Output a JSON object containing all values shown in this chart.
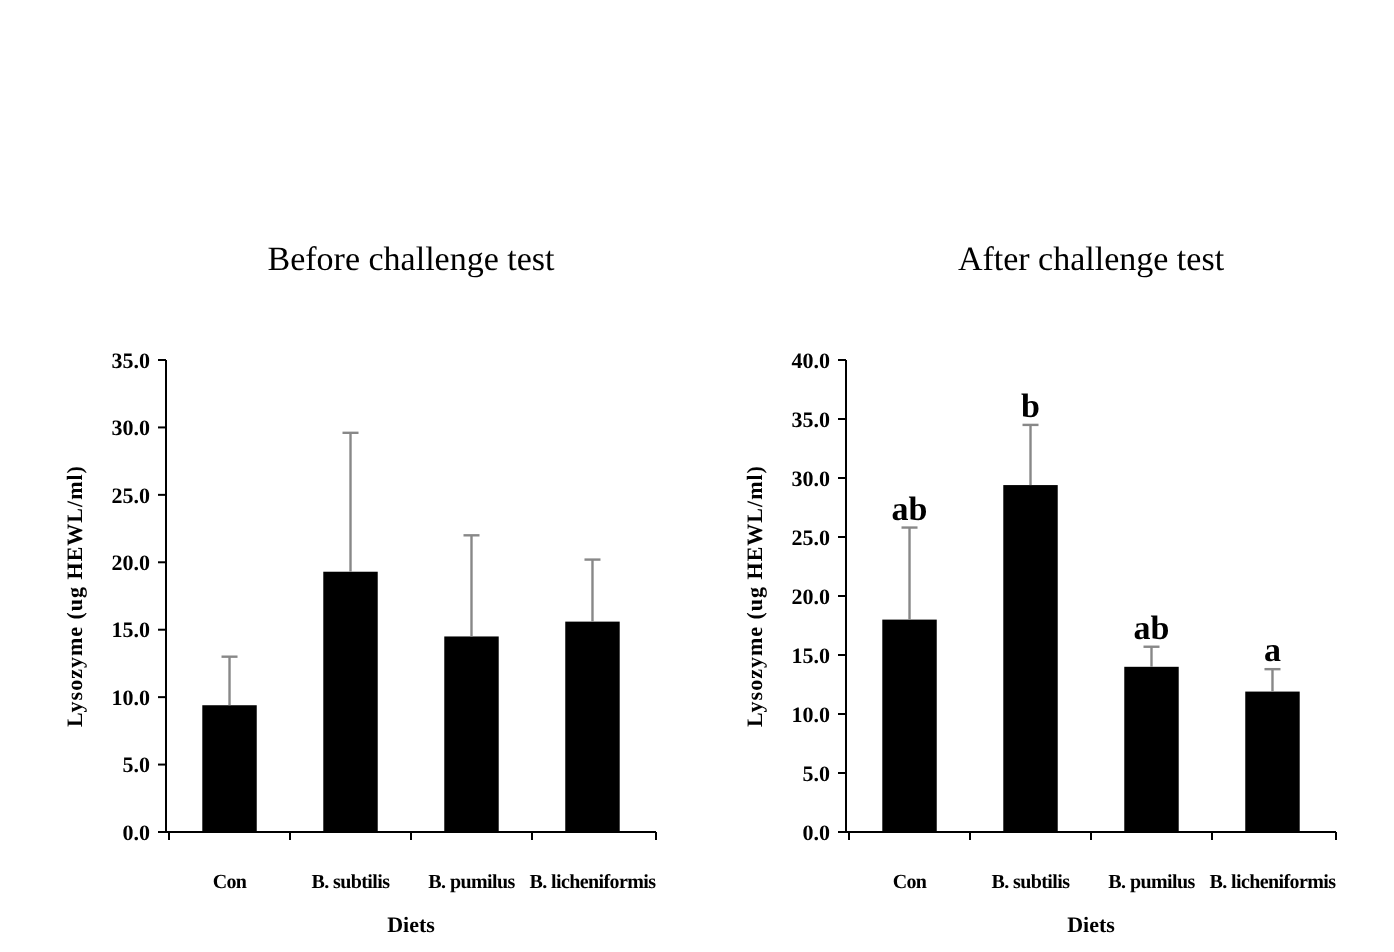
{
  "chart_data": [
    {
      "type": "bar",
      "title": "Before challenge test",
      "xlabel": "Diets",
      "ylabel": "Lysozyme (ug HEWL/ml)",
      "categories": [
        "Con",
        "B. subtilis",
        "B. pumilus",
        "B. licheniformis"
      ],
      "values": [
        9.4,
        19.3,
        14.5,
        15.6
      ],
      "color": "#000000",
      "errors": [
        [
          9.4,
          13.0
        ],
        [
          19.3,
          29.6
        ],
        [
          14.5,
          22.0
        ],
        [
          15.6,
          20.2
        ]
      ],
      "ylim": [
        0,
        35
      ],
      "yticks": [
        {
          "value": 0,
          "label": "0.0"
        },
        {
          "value": 5,
          "label": "5.0"
        },
        {
          "value": 10,
          "label": "10.0"
        },
        {
          "value": 15,
          "label": "15.0"
        },
        {
          "value": 20,
          "label": "20.0"
        },
        {
          "value": 25,
          "label": "25.0"
        },
        {
          "value": 30,
          "label": "30.0"
        },
        {
          "value": 35,
          "label": "35.0"
        }
      ],
      "grid": false
    },
    {
      "type": "bar",
      "title": "After challenge test",
      "xlabel": "Diets",
      "ylabel": "Lysozyme (ug HEWL/ml)",
      "categories": [
        "Con",
        "B. subtilis",
        "B. pumilus",
        "B. licheniformis"
      ],
      "values": [
        18.0,
        29.4,
        14.0,
        11.9
      ],
      "color": "#000000",
      "errors": [
        [
          18.0,
          25.8
        ],
        [
          29.4,
          34.5
        ],
        [
          14.0,
          15.7
        ],
        [
          11.9,
          13.8
        ]
      ],
      "ylim": [
        0,
        40
      ],
      "yticks": [
        {
          "value": 0,
          "label": "0.0"
        },
        {
          "value": 5,
          "label": "5.0"
        },
        {
          "value": 10,
          "label": "10.0"
        },
        {
          "value": 15,
          "label": "15.0"
        },
        {
          "value": 20,
          "label": "20.0"
        },
        {
          "value": 25,
          "label": "25.0"
        },
        {
          "value": 30,
          "label": "30.0"
        },
        {
          "value": 35,
          "label": "35.0"
        },
        {
          "value": 40,
          "label": "40.0"
        }
      ],
      "grid": false,
      "annotations": [
        {
          "text": "ab",
          "x": "Con",
          "y": 25.8
        },
        {
          "text": "b",
          "x": "B. subtilis",
          "y": 34.5
        },
        {
          "text": "ab",
          "x": "B. pumilus",
          "y": 15.7
        },
        {
          "text": "a",
          "x": "B. licheniformis",
          "y": 13.8
        }
      ]
    }
  ]
}
